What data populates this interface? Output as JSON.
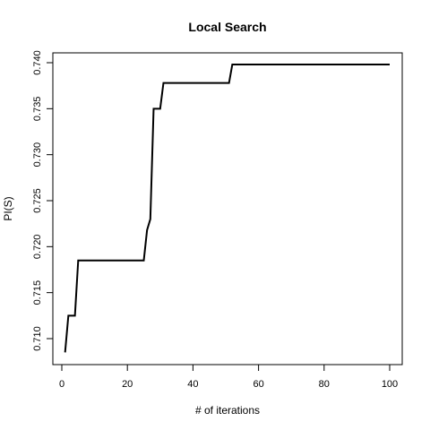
{
  "chart_data": {
    "type": "line",
    "title": "Local Search",
    "xlabel": "# of iterations",
    "ylabel": "PI(S)",
    "xlim": [
      0,
      100
    ],
    "ylim": [
      0.708,
      0.74
    ],
    "x_ticks": [
      0,
      20,
      40,
      60,
      80,
      100
    ],
    "x_tick_labels": [
      "0",
      "20",
      "40",
      "60",
      "80",
      "100"
    ],
    "y_ticks": [
      0.71,
      0.715,
      0.72,
      0.725,
      0.73,
      0.735,
      0.74
    ],
    "y_tick_labels": [
      "0.710",
      "0.715",
      "0.720",
      "0.725",
      "0.730",
      "0.735",
      "0.740"
    ],
    "grid": false,
    "series": [
      {
        "color": "#000000",
        "x": [
          1,
          2,
          4,
          5,
          25,
          26,
          27,
          28,
          30,
          31,
          51,
          52,
          100
        ],
        "y": [
          0.7085,
          0.7125,
          0.7125,
          0.7185,
          0.7185,
          0.7218,
          0.723,
          0.735,
          0.735,
          0.7378,
          0.7378,
          0.7398,
          0.7398
        ]
      }
    ]
  }
}
